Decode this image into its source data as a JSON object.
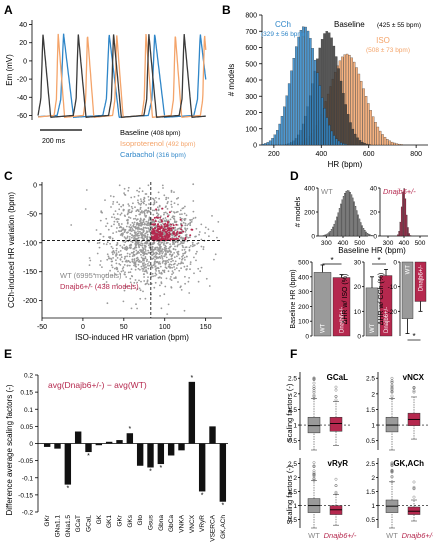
{
  "colors": {
    "baseline": "#3a3a3a",
    "iso": "#f4a46a",
    "cch": "#2f86c8",
    "wt": "#9a9a9a",
    "dnajb6": "#b5284e",
    "axis": "#000000"
  },
  "chart_data": [
    {
      "panel": "A",
      "type": "line",
      "ylabel": "Em (mV)",
      "ylim": [
        -65,
        45
      ],
      "yticks": [
        -60,
        -40,
        -20,
        0,
        20,
        40
      ],
      "scale_bar": "200 ms",
      "series": [
        {
          "name": "Baseline",
          "label_suffix": "(408 bpm)",
          "rate_bpm": 408,
          "color_key": "baseline"
        },
        {
          "name": "Isoproterenol",
          "label_suffix": "(492 bpm)",
          "rate_bpm": 492,
          "color_key": "iso"
        },
        {
          "name": "Carbachol",
          "label_suffix": "(316 bpm)",
          "rate_bpm": 316,
          "color_key": "cch"
        }
      ]
    },
    {
      "panel": "B",
      "type": "bar",
      "xlabel": "HR (bpm)",
      "ylabel": "# models",
      "xlim": [
        150,
        850
      ],
      "ylim": [
        0,
        800
      ],
      "xticks": [
        200,
        400,
        600,
        800
      ],
      "yticks": [
        0,
        100,
        200,
        300,
        400,
        500,
        600,
        700,
        800
      ],
      "series": [
        {
          "name": "CCh",
          "stat": "(329 ± 56 bpm)",
          "mean": 329,
          "sd": 56,
          "peak": 730,
          "color_key": "cch"
        },
        {
          "name": "Baseline",
          "stat": "(425 ± 55 bpm)",
          "mean": 425,
          "sd": 55,
          "peak": 700,
          "color_key": "baseline"
        },
        {
          "name": "ISO",
          "stat": "(508 ± 73 bpm)",
          "mean": 508,
          "sd": 73,
          "peak": 560,
          "color_key": "iso"
        }
      ]
    },
    {
      "panel": "C",
      "type": "scatter",
      "xlabel": "ISO-induced HR variation (bpm)",
      "ylabel": "CCh-induced HR variation (bpm)",
      "xlim": [
        -50,
        170
      ],
      "ylim": [
        -230,
        5
      ],
      "xticks": [
        -50,
        0,
        50,
        100,
        150
      ],
      "yticks": [
        -200,
        -150,
        -100,
        -50,
        0
      ],
      "series": [
        {
          "name": "WT",
          "count_label": "(6995 models)",
          "color_key": "wt"
        },
        {
          "name": "Dnajb6+/-",
          "count_label": "(438 models)",
          "color_key": "dnajb6"
        }
      ]
    },
    {
      "panel": "D",
      "type": "bar",
      "hist_wt_label": "WT",
      "hist_dnaj_label": "Dnajb6+/-",
      "hist_ylabel": "# models",
      "hist_xlabel": "Baseline HR (bpm)",
      "hist_xticks": [
        300,
        400,
        500
      ],
      "hist_wt_yticks": [
        0,
        200,
        400
      ],
      "hist_dnaj_yticks": [
        0,
        20,
        40
      ],
      "bars": [
        {
          "ylabel": "Baseline HR (bpm)",
          "yticks": [
            0,
            100,
            200,
            300,
            400,
            500
          ],
          "ylim": [
            0,
            500
          ],
          "wt": 430,
          "wt_err": 50,
          "dnaj": 395,
          "dnaj_err": 20,
          "sig": "*"
        },
        {
          "ylabel": "ΔHR w/ ISO (%)",
          "yticks": [
            0,
            10,
            20,
            30
          ],
          "ylim": [
            0,
            30
          ],
          "wt": 19.5,
          "wt_err": 4.5,
          "dnaj": 24.5,
          "dnaj_err": 2.5,
          "sig": "*"
        },
        {
          "ylabel": "ΔHR w/ CCh (%)",
          "yticks": [
            -20,
            -10,
            0
          ],
          "ylim": [
            -30,
            0
          ],
          "wt": -23,
          "wt_err": 6,
          "dnaj": -16,
          "dnaj_err": 4,
          "sig": "*"
        }
      ],
      "bar_labels": [
        "WT",
        "Dnajb6+/-"
      ]
    },
    {
      "panel": "E",
      "type": "bar",
      "title": "avg(Dnajb6+/-) − avg(WT)",
      "ylabel": "Difference average scaling factors (-)",
      "ylim": [
        -0.2,
        0.2
      ],
      "yticks": [
        -0.2,
        -0.15,
        -0.1,
        -0.05,
        0,
        0.05,
        0.1,
        0.15,
        0.2
      ],
      "categories": [
        "GKr",
        "GNa1.1",
        "GNa1.5",
        "GCaT",
        "GCaL",
        "GK",
        "GK1",
        "GKr",
        "GKs",
        "Gto",
        "Gsus",
        "Gbna",
        "GbCa",
        "VNKA",
        "VNCX",
        "VRyR",
        "VSERCA",
        "GK,ACh"
      ],
      "values": [
        -0.01,
        -0.015,
        -0.12,
        0.035,
        -0.025,
        -0.005,
        0.005,
        0.01,
        0.03,
        -0.065,
        -0.07,
        -0.06,
        -0.035,
        -0.02,
        0.18,
        -0.14,
        0.05,
        -0.17
      ],
      "significant": [
        false,
        false,
        true,
        false,
        true,
        false,
        false,
        false,
        true,
        false,
        true,
        true,
        false,
        false,
        true,
        true,
        false,
        true
      ]
    },
    {
      "panel": "F",
      "type": "box",
      "ylabel": "Scaling factors (-)",
      "groups": [
        "WT",
        "Dnajb6+/-"
      ],
      "subplots": [
        {
          "title": "GCaL",
          "ylim": [
            0.2,
            2.7
          ],
          "yticks": [
            0.5,
            1,
            1.5,
            2,
            2.5
          ],
          "wt": [
            0.2,
            0.75,
            0.98,
            1.25,
            1.85
          ],
          "dnaj": [
            0.35,
            0.8,
            1.05,
            1.25,
            1.75
          ]
        },
        {
          "title": "vNCX",
          "ylim": [
            0.2,
            2.7
          ],
          "yticks": [
            0.5,
            1,
            1.5,
            2,
            2.5
          ],
          "wt": [
            0.2,
            0.78,
            1.0,
            1.25,
            1.85
          ],
          "dnaj": [
            0.55,
            0.98,
            1.18,
            1.38,
            1.9
          ]
        },
        {
          "title": "vRyR",
          "ylim": [
            0.2,
            2.7
          ],
          "yticks": [
            0.5,
            1,
            1.5,
            2,
            2.5
          ],
          "wt": [
            0.2,
            0.75,
            1.0,
            1.25,
            1.9
          ],
          "dnaj": [
            0.3,
            0.68,
            0.85,
            1.0,
            1.4
          ]
        },
        {
          "title": "GK,ACh",
          "ylim": [
            0.2,
            2.7
          ],
          "yticks": [
            0.5,
            1,
            1.5,
            2,
            2.5
          ],
          "wt": [
            0.2,
            0.75,
            0.98,
            1.2,
            1.85
          ],
          "dnaj": [
            0.45,
            0.68,
            0.8,
            0.95,
            1.2
          ]
        }
      ]
    }
  ]
}
